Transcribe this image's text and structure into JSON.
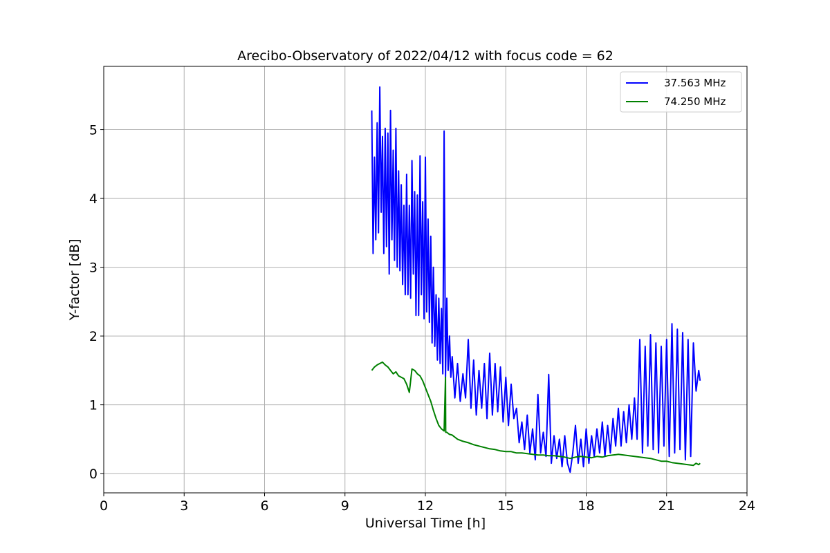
{
  "chart_data": {
    "type": "line",
    "title": "Arecibo-Observatory of 2022/04/12 with focus code = 62",
    "xlabel": "Universal Time [h]",
    "ylabel": "Y-factor [dB]",
    "xlim": [
      0,
      24
    ],
    "ylim": [
      -0.28,
      5.92
    ],
    "x_ticks": [
      0,
      3,
      6,
      9,
      12,
      15,
      18,
      21,
      24
    ],
    "x_tick_labels": [
      "0",
      "3",
      "6",
      "9",
      "12",
      "15",
      "18",
      "21",
      "24"
    ],
    "y_ticks": [
      0,
      1,
      2,
      3,
      4,
      5
    ],
    "y_tick_labels": [
      "0",
      "1",
      "2",
      "3",
      "4",
      "5"
    ],
    "grid": true,
    "legend_position": "top-right",
    "series": [
      {
        "name": "37.563 MHz",
        "color": "#0000ff",
        "x": [
          10.0,
          10.05,
          10.1,
          10.15,
          10.2,
          10.25,
          10.3,
          10.35,
          10.4,
          10.45,
          10.5,
          10.55,
          10.6,
          10.65,
          10.7,
          10.75,
          10.8,
          10.85,
          10.9,
          10.95,
          11.0,
          11.05,
          11.1,
          11.15,
          11.2,
          11.25,
          11.3,
          11.35,
          11.4,
          11.45,
          11.5,
          11.55,
          11.6,
          11.65,
          11.7,
          11.75,
          11.8,
          11.85,
          11.9,
          11.95,
          12.0,
          12.05,
          12.1,
          12.15,
          12.2,
          12.25,
          12.3,
          12.35,
          12.4,
          12.45,
          12.5,
          12.55,
          12.6,
          12.65,
          12.7,
          12.75,
          12.8,
          12.85,
          12.9,
          12.95,
          13.0,
          13.1,
          13.2,
          13.3,
          13.4,
          13.5,
          13.6,
          13.7,
          13.8,
          13.9,
          14.0,
          14.1,
          14.2,
          14.3,
          14.4,
          14.5,
          14.6,
          14.7,
          14.8,
          14.9,
          15.0,
          15.1,
          15.2,
          15.3,
          15.4,
          15.5,
          15.6,
          15.7,
          15.8,
          15.9,
          16.0,
          16.1,
          16.2,
          16.3,
          16.4,
          16.5,
          16.6,
          16.7,
          16.8,
          16.9,
          17.0,
          17.1,
          17.2,
          17.3,
          17.4,
          17.5,
          17.6,
          17.7,
          17.8,
          17.9,
          18.0,
          18.1,
          18.2,
          18.3,
          18.4,
          18.5,
          18.6,
          18.7,
          18.8,
          18.9,
          19.0,
          19.1,
          19.2,
          19.3,
          19.4,
          19.5,
          19.6,
          19.7,
          19.8,
          19.9,
          20.0,
          20.1,
          20.2,
          20.3,
          20.4,
          20.5,
          20.6,
          20.7,
          20.8,
          20.9,
          21.0,
          21.1,
          21.2,
          21.3,
          21.4,
          21.5,
          21.6,
          21.7,
          21.8,
          21.9,
          22.0,
          22.1,
          22.2,
          22.25
        ],
        "y": [
          5.28,
          3.2,
          4.6,
          3.4,
          5.1,
          3.5,
          5.62,
          3.8,
          4.9,
          3.2,
          5.02,
          3.3,
          4.95,
          2.9,
          5.28,
          3.4,
          4.7,
          3.1,
          5.02,
          3.0,
          4.4,
          2.95,
          4.2,
          2.75,
          3.9,
          2.6,
          4.35,
          2.6,
          3.9,
          2.55,
          4.55,
          2.9,
          4.1,
          2.3,
          4.05,
          2.3,
          4.62,
          2.6,
          3.95,
          2.25,
          4.6,
          2.35,
          3.7,
          2.2,
          3.45,
          1.9,
          3.0,
          1.85,
          2.6,
          1.65,
          2.55,
          1.6,
          2.4,
          1.45,
          4.98,
          1.4,
          2.55,
          1.5,
          2.0,
          1.4,
          1.7,
          1.1,
          1.6,
          1.05,
          1.45,
          1.1,
          1.95,
          0.95,
          1.65,
          0.85,
          1.5,
          0.95,
          1.6,
          0.8,
          1.75,
          0.85,
          1.6,
          0.9,
          1.55,
          0.75,
          1.4,
          0.7,
          1.3,
          0.8,
          0.95,
          0.45,
          0.75,
          0.35,
          0.85,
          0.3,
          0.65,
          0.2,
          1.15,
          0.3,
          0.6,
          0.25,
          1.44,
          0.15,
          0.55,
          0.22,
          0.5,
          0.1,
          0.55,
          0.15,
          0.02,
          0.3,
          0.7,
          0.15,
          0.5,
          0.1,
          0.65,
          0.15,
          0.55,
          0.25,
          0.65,
          0.3,
          0.75,
          0.25,
          0.7,
          0.3,
          0.8,
          0.4,
          0.95,
          0.4,
          0.9,
          0.45,
          1.0,
          0.5,
          1.1,
          0.5,
          1.95,
          0.3,
          1.85,
          0.4,
          2.02,
          0.35,
          1.9,
          0.3,
          1.85,
          0.4,
          1.95,
          0.25,
          2.18,
          0.3,
          2.1,
          0.35,
          2.05,
          0.2,
          1.95,
          0.25,
          1.9,
          1.2,
          1.5,
          1.35
        ]
      },
      {
        "name": "74.250 MHz",
        "color": "#008000",
        "x": [
          10.0,
          10.1,
          10.2,
          10.3,
          10.4,
          10.5,
          10.6,
          10.7,
          10.8,
          10.9,
          11.0,
          11.1,
          11.2,
          11.3,
          11.4,
          11.5,
          11.6,
          11.7,
          11.8,
          11.9,
          12.0,
          12.1,
          12.2,
          12.3,
          12.4,
          12.5,
          12.6,
          12.7,
          12.75,
          12.76,
          12.8,
          12.9,
          13.0,
          13.2,
          13.4,
          13.6,
          13.8,
          14.0,
          14.2,
          14.4,
          14.6,
          14.8,
          15.0,
          15.2,
          15.4,
          15.6,
          15.8,
          16.0,
          16.2,
          16.4,
          16.6,
          16.8,
          17.0,
          17.2,
          17.4,
          17.6,
          17.8,
          18.0,
          18.2,
          18.4,
          18.6,
          18.8,
          19.0,
          19.2,
          19.4,
          19.6,
          19.8,
          20.0,
          20.2,
          20.4,
          20.6,
          20.8,
          21.0,
          21.2,
          21.4,
          21.6,
          21.8,
          22.0,
          22.1,
          22.2,
          22.25
        ],
        "y": [
          1.5,
          1.55,
          1.58,
          1.6,
          1.62,
          1.58,
          1.55,
          1.5,
          1.45,
          1.48,
          1.42,
          1.4,
          1.38,
          1.3,
          1.18,
          1.52,
          1.5,
          1.45,
          1.42,
          1.35,
          1.25,
          1.15,
          1.05,
          0.92,
          0.8,
          0.7,
          0.65,
          0.62,
          1.4,
          0.6,
          0.6,
          0.57,
          0.56,
          0.5,
          0.47,
          0.45,
          0.42,
          0.4,
          0.38,
          0.36,
          0.35,
          0.33,
          0.32,
          0.32,
          0.3,
          0.3,
          0.29,
          0.28,
          0.27,
          0.27,
          0.26,
          0.26,
          0.25,
          0.24,
          0.22,
          0.24,
          0.25,
          0.24,
          0.23,
          0.25,
          0.24,
          0.26,
          0.27,
          0.28,
          0.27,
          0.26,
          0.25,
          0.24,
          0.23,
          0.22,
          0.2,
          0.18,
          0.18,
          0.16,
          0.15,
          0.14,
          0.13,
          0.12,
          0.15,
          0.13,
          0.15
        ]
      }
    ]
  }
}
